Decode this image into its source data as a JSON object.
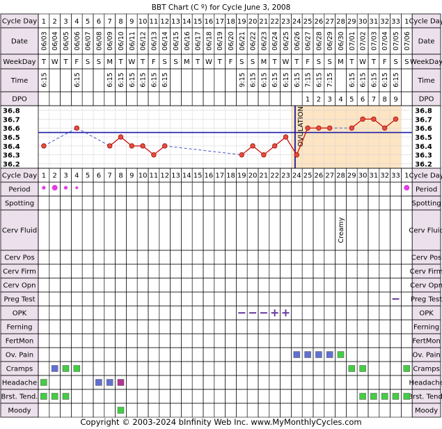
{
  "title": "BBT Chart (C º) for Cycle June 3, 2008",
  "footer": "Copyright © 2003-2024 bInfinity Web Inc.    www.MyMonthlyCycles.com",
  "row_labels": {
    "cycle_day": "Cycle Day",
    "date": "Date",
    "weekday": "WeekDay",
    "time": "Time",
    "dpo": "DPO"
  },
  "ovulation_label": "OVULATION",
  "coverline": 36.55,
  "ovulation_after_day": 23,
  "colors": {
    "row_label_bg": "#ece0ec",
    "luteal_bg": "#fde4c2",
    "temp_line": "#cc0000",
    "temp_marker": "#e74c3c",
    "coverline": "#1a1aa6",
    "ovulation_line": "#1a1aa6",
    "dashed_line": "#4455cc",
    "period_dot": "#e040e0",
    "opk": "#6b3fa0",
    "ov_pain": "#6070d0",
    "green": "#44cc44",
    "headache_dark": "#b03590"
  },
  "days": [
    {
      "cd": "1",
      "date": "06/03",
      "wd": "T",
      "time": "6:15",
      "dpo": ""
    },
    {
      "cd": "2",
      "date": "06/04",
      "wd": "W",
      "time": "",
      "dpo": ""
    },
    {
      "cd": "3",
      "date": "06/05",
      "wd": "T",
      "time": "",
      "dpo": ""
    },
    {
      "cd": "4",
      "date": "06/06",
      "wd": "F",
      "time": "6:15",
      "dpo": ""
    },
    {
      "cd": "5",
      "date": "06/07",
      "wd": "S",
      "time": "",
      "dpo": ""
    },
    {
      "cd": "6",
      "date": "06/08",
      "wd": "S",
      "time": "",
      "dpo": ""
    },
    {
      "cd": "7",
      "date": "06/09",
      "wd": "M",
      "time": "6:15",
      "dpo": ""
    },
    {
      "cd": "8",
      "date": "06/10",
      "wd": "T",
      "time": "6:15",
      "dpo": ""
    },
    {
      "cd": "9",
      "date": "06/11",
      "wd": "W",
      "time": "6:15",
      "dpo": ""
    },
    {
      "cd": "10",
      "date": "06/12",
      "wd": "T",
      "time": "6:15",
      "dpo": ""
    },
    {
      "cd": "11",
      "date": "06/13",
      "wd": "F",
      "time": "6:15",
      "dpo": ""
    },
    {
      "cd": "12",
      "date": "06/14",
      "wd": "S",
      "time": "6:15",
      "dpo": ""
    },
    {
      "cd": "13",
      "date": "06/15",
      "wd": "S",
      "time": "",
      "dpo": ""
    },
    {
      "cd": "14",
      "date": "06/16",
      "wd": "M",
      "time": "",
      "dpo": ""
    },
    {
      "cd": "15",
      "date": "06/17",
      "wd": "T",
      "time": "",
      "dpo": ""
    },
    {
      "cd": "16",
      "date": "06/18",
      "wd": "W",
      "time": "",
      "dpo": ""
    },
    {
      "cd": "17",
      "date": "06/19",
      "wd": "T",
      "time": "",
      "dpo": ""
    },
    {
      "cd": "18",
      "date": "06/20",
      "wd": "F",
      "time": "",
      "dpo": ""
    },
    {
      "cd": "19",
      "date": "06/21",
      "wd": "S",
      "time": "9:15",
      "dpo": ""
    },
    {
      "cd": "20",
      "date": "06/22",
      "wd": "S",
      "time": "6:15",
      "dpo": ""
    },
    {
      "cd": "21",
      "date": "06/23",
      "wd": "M",
      "time": "6:15",
      "dpo": ""
    },
    {
      "cd": "22",
      "date": "06/24",
      "wd": "T",
      "time": "6:15",
      "dpo": ""
    },
    {
      "cd": "23",
      "date": "06/25",
      "wd": "W",
      "time": "6:15",
      "dpo": ""
    },
    {
      "cd": "24",
      "date": "06/26",
      "wd": "T",
      "time": "6:15",
      "dpo": ""
    },
    {
      "cd": "25",
      "date": "06/27",
      "wd": "F",
      "time": "7:15",
      "dpo": "1"
    },
    {
      "cd": "26",
      "date": "06/28",
      "wd": "S",
      "time": "6:15",
      "dpo": "2"
    },
    {
      "cd": "27",
      "date": "06/29",
      "wd": "S",
      "time": "7:15",
      "dpo": "3"
    },
    {
      "cd": "28",
      "date": "06/30",
      "wd": "M",
      "time": "",
      "dpo": "4"
    },
    {
      "cd": "29",
      "date": "07/01",
      "wd": "T",
      "time": "6:15",
      "dpo": "5"
    },
    {
      "cd": "30",
      "date": "07/02",
      "wd": "W",
      "time": "6:15",
      "dpo": "6"
    },
    {
      "cd": "31",
      "date": "07/03",
      "wd": "T",
      "time": "6:15",
      "dpo": "7"
    },
    {
      "cd": "32",
      "date": "07/04",
      "wd": "F",
      "time": "6:15",
      "dpo": "8"
    },
    {
      "cd": "33",
      "date": "07/05",
      "wd": "S",
      "time": "6:15",
      "dpo": "9"
    },
    {
      "cd": "1",
      "date": "07/06",
      "wd": "S",
      "time": "",
      "dpo": ""
    }
  ],
  "chart_data": {
    "type": "line",
    "title": "BBT Chart (C º) for Cycle June 3, 2008",
    "ylabel": "",
    "xlabel": "",
    "ylim": [
      36.15,
      36.85
    ],
    "y_ticks": [
      "36.8",
      "36.7",
      "36.6",
      "36.5",
      "36.4",
      "36.3",
      "36.2"
    ],
    "x": [
      1,
      2,
      3,
      4,
      5,
      6,
      7,
      8,
      9,
      10,
      11,
      12,
      13,
      14,
      15,
      16,
      17,
      18,
      19,
      20,
      21,
      22,
      23,
      24,
      25,
      26,
      27,
      28,
      29,
      30,
      31,
      32,
      33,
      34
    ],
    "temps": [
      36.4,
      null,
      null,
      36.6,
      null,
      null,
      36.4,
      36.5,
      36.4,
      36.4,
      36.3,
      36.4,
      null,
      null,
      null,
      null,
      null,
      null,
      36.3,
      36.4,
      36.3,
      36.4,
      36.5,
      36.3,
      36.6,
      36.6,
      36.6,
      null,
      36.6,
      36.7,
      36.7,
      36.6,
      36.7,
      null
    ],
    "grid": true,
    "legend": "none"
  },
  "rows": [
    {
      "label": "Cycle Day",
      "type": "cycle_day"
    },
    {
      "label": "Period",
      "type": "period",
      "items": [
        {
          "d": 1,
          "s": "s"
        },
        {
          "d": 2,
          "s": "l"
        },
        {
          "d": 3,
          "s": "s"
        },
        {
          "d": 4,
          "s": "xs"
        },
        {
          "d": 34,
          "s": "l"
        }
      ]
    },
    {
      "label": "Spotting",
      "type": "empty"
    },
    {
      "label": "Cerv Fluid",
      "type": "text",
      "items": [
        {
          "d": 28,
          "text": "Creamy"
        }
      ]
    },
    {
      "label": "Cerv Pos",
      "type": "empty"
    },
    {
      "label": "Cerv Firm",
      "type": "empty"
    },
    {
      "label": "Cerv Opn",
      "type": "empty"
    },
    {
      "label": "Preg Test",
      "type": "dash",
      "items": [
        {
          "d": 33
        }
      ]
    },
    {
      "label": "OPK",
      "type": "opk",
      "items": [
        {
          "d": 19,
          "v": "neg"
        },
        {
          "d": 20,
          "v": "neg"
        },
        {
          "d": 21,
          "v": "neg"
        },
        {
          "d": 22,
          "v": "pos"
        },
        {
          "d": 23,
          "v": "pos"
        }
      ]
    },
    {
      "label": "Ferning",
      "type": "empty"
    },
    {
      "label": "FertMon",
      "type": "empty"
    },
    {
      "label": "Ov. Pain",
      "type": "squares",
      "items": [
        {
          "d": 24,
          "c": "blue"
        },
        {
          "d": 25,
          "c": "blue"
        },
        {
          "d": 26,
          "c": "blue"
        },
        {
          "d": 27,
          "c": "blue"
        },
        {
          "d": 28,
          "c": "green"
        }
      ]
    },
    {
      "label": "Cramps",
      "type": "squares",
      "items": [
        {
          "d": 2,
          "c": "blue"
        },
        {
          "d": 3,
          "c": "green"
        },
        {
          "d": 4,
          "c": "green"
        },
        {
          "d": 29,
          "c": "green"
        },
        {
          "d": 30,
          "c": "green"
        },
        {
          "d": 34,
          "c": "green"
        }
      ]
    },
    {
      "label": "Headache",
      "type": "squares",
      "items": [
        {
          "d": 1,
          "c": "green"
        },
        {
          "d": 6,
          "c": "blue"
        },
        {
          "d": 7,
          "c": "blue"
        },
        {
          "d": 8,
          "c": "dark"
        }
      ]
    },
    {
      "label": "Brst. Tend.",
      "type": "squares",
      "items": [
        {
          "d": 1,
          "c": "green"
        },
        {
          "d": 2,
          "c": "green"
        },
        {
          "d": 3,
          "c": "green"
        },
        {
          "d": 30,
          "c": "green"
        },
        {
          "d": 31,
          "c": "green"
        },
        {
          "d": 32,
          "c": "green"
        },
        {
          "d": 33,
          "c": "green"
        },
        {
          "d": 34,
          "c": "green"
        }
      ]
    },
    {
      "label": "Moody",
      "type": "squares",
      "items": [
        {
          "d": 8,
          "c": "green"
        }
      ]
    }
  ]
}
